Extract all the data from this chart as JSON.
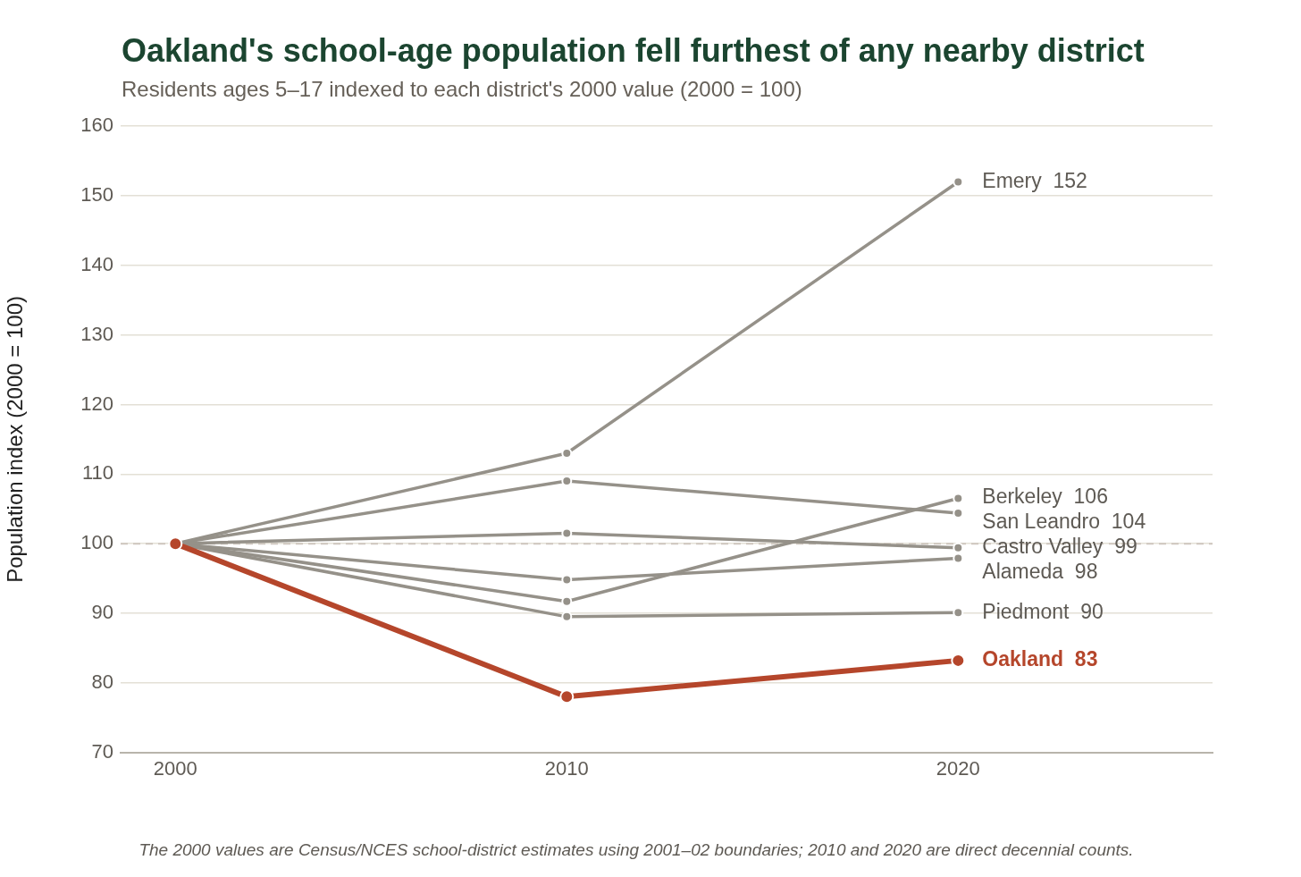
{
  "chart_data": {
    "type": "line",
    "title": "Oakland's school-age population fell furthest of any nearby district",
    "subtitle": "Residents ages 5–17 indexed to each district's 2000 value (2000 = 100)",
    "ylabel": "Population index (2000 = 100)",
    "x": [
      2000,
      2010,
      2020
    ],
    "xlim": [
      1998.6,
      2026.5
    ],
    "xticks": [
      2000,
      2010,
      2020
    ],
    "ylim": [
      70,
      160
    ],
    "yticks": [
      70,
      80,
      90,
      100,
      110,
      120,
      130,
      140,
      150,
      160
    ],
    "grid": "y",
    "legend": false,
    "marker": "circle",
    "line_style": "solid",
    "ref_lines": [
      {
        "axis": "y",
        "value": 100,
        "color": "#cfc8c0",
        "line_style": "dashed"
      }
    ],
    "annotations": [
      "The 2000 values are Census/NCES school-district estimates using 2001–02 boundaries; 2010 and 2020 are direct decennial counts."
    ],
    "series": [
      {
        "name": "Emery",
        "color": "#959189",
        "values": [
          100,
          113,
          152
        ],
        "value_labels": [
          null,
          null,
          "152"
        ]
      },
      {
        "name": "Berkeley",
        "color": "#959189",
        "values": [
          100,
          91.7,
          106.5
        ],
        "value_labels": [
          null,
          null,
          "106"
        ]
      },
      {
        "name": "San Leandro",
        "color": "#959189",
        "values": [
          100,
          109,
          104.4
        ],
        "value_labels": [
          null,
          null,
          "104"
        ]
      },
      {
        "name": "Castro Valley",
        "color": "#959189",
        "values": [
          100,
          101.5,
          99.4
        ],
        "value_labels": [
          null,
          null,
          "99"
        ]
      },
      {
        "name": "Alameda",
        "color": "#959189",
        "values": [
          100,
          94.8,
          97.9
        ],
        "value_labels": [
          null,
          null,
          "98"
        ]
      },
      {
        "name": "Piedmont",
        "color": "#959189",
        "values": [
          100,
          89.5,
          90.1
        ],
        "value_labels": [
          null,
          null,
          "90"
        ]
      },
      {
        "name": "Oakland",
        "color": "#b5462b",
        "values": [
          100,
          78,
          83.2
        ],
        "value_labels": [
          null,
          null,
          "83"
        ]
      }
    ]
  }
}
